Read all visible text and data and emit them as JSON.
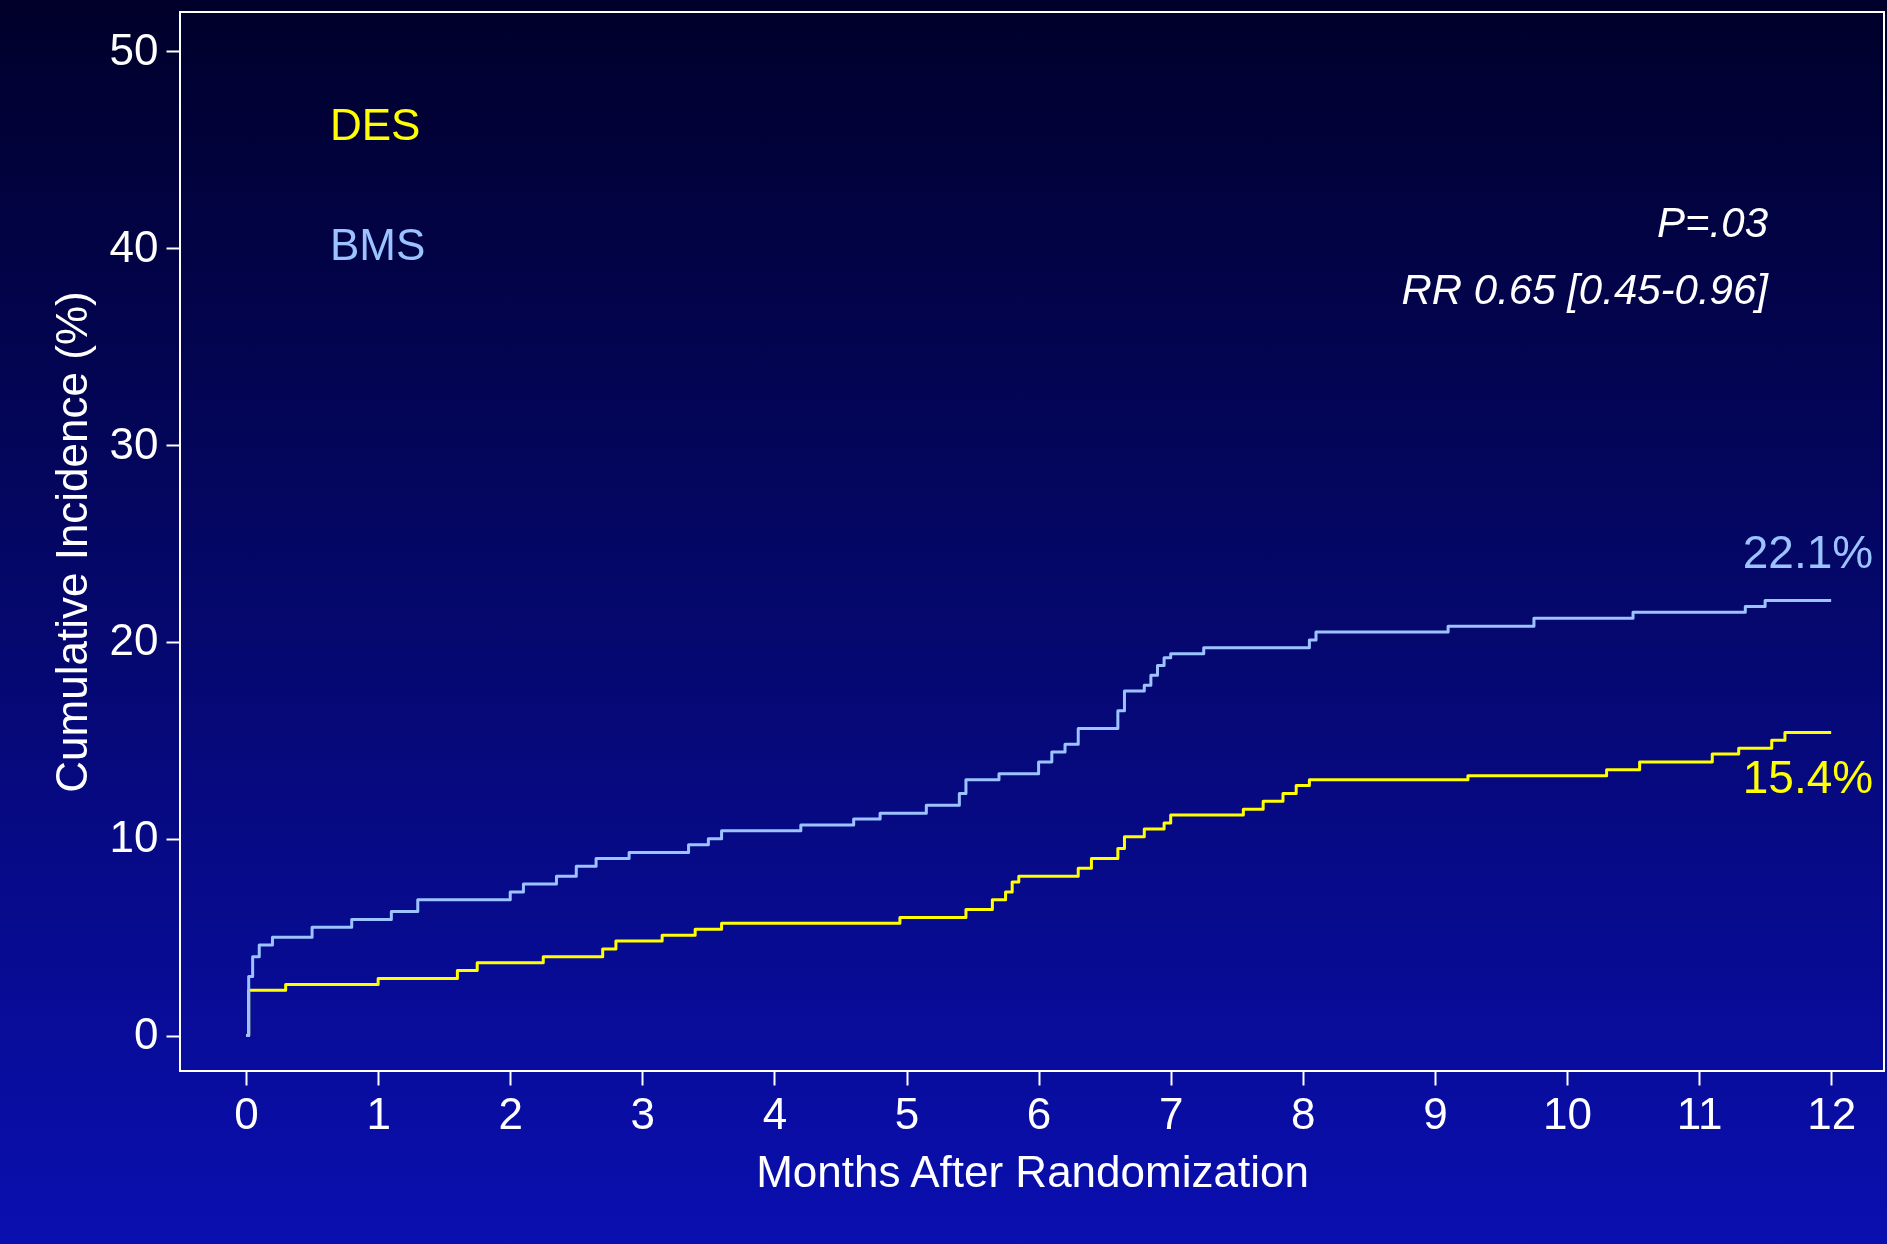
{
  "chart_data": {
    "type": "step",
    "xlabel": "Months After Randomization",
    "ylabel": "Cumulative Incidence (%)",
    "xlim": [
      -0.5,
      12.4
    ],
    "ylim": [
      -1.8,
      52
    ],
    "xticks": [
      0,
      1,
      2,
      3,
      4,
      5,
      6,
      7,
      8,
      9,
      10,
      11,
      12
    ],
    "yticks": [
      0,
      10,
      20,
      30,
      40,
      50
    ],
    "grid": false,
    "legend": "top left",
    "annotations": [
      "P=.03",
      "RR 0.65 [0.45-0.96]"
    ],
    "series": [
      {
        "name": "DES",
        "color": "#ffff00",
        "x": [
          0,
          0.02,
          0.3,
          1.0,
          1.6,
          1.75,
          2.25,
          2.7,
          2.8,
          3.15,
          3.4,
          3.6,
          4.95,
          5.45,
          5.65,
          5.75,
          5.8,
          5.85,
          6.3,
          6.4,
          6.6,
          6.65,
          6.8,
          6.95,
          7.0,
          7.55,
          7.7,
          7.85,
          7.95,
          8.05,
          9.25,
          10.3,
          10.55,
          11.1,
          11.3,
          11.55,
          11.65,
          12
        ],
        "values": [
          0,
          2.3,
          2.6,
          2.9,
          3.3,
          3.7,
          4.0,
          4.4,
          4.8,
          5.1,
          5.4,
          5.7,
          6.0,
          6.4,
          6.9,
          7.3,
          7.8,
          8.1,
          8.5,
          9.0,
          9.5,
          10.1,
          10.5,
          10.8,
          11.2,
          11.5,
          11.9,
          12.3,
          12.7,
          13.0,
          13.2,
          13.5,
          13.9,
          14.3,
          14.6,
          15.0,
          15.4,
          15.4
        ],
        "value_labels": [
          null,
          null,
          null,
          null,
          null,
          null,
          null,
          null,
          null,
          null,
          null,
          null,
          null,
          null,
          null,
          null,
          null,
          null,
          null,
          null,
          null,
          null,
          null,
          null,
          null,
          null,
          null,
          null,
          null,
          null,
          null,
          null,
          null,
          null,
          null,
          null,
          null,
          "15.4%"
        ]
      },
      {
        "name": "BMS",
        "color": "#9cc3ff",
        "x": [
          0,
          0.02,
          0.05,
          0.1,
          0.2,
          0.5,
          0.8,
          1.1,
          1.3,
          2.0,
          2.1,
          2.35,
          2.5,
          2.65,
          2.9,
          3.35,
          3.5,
          3.6,
          4.2,
          4.6,
          4.8,
          5.15,
          5.4,
          5.45,
          5.7,
          6.0,
          6.1,
          6.2,
          6.3,
          6.6,
          6.65,
          6.8,
          6.85,
          6.9,
          6.95,
          7.0,
          7.25,
          8.05,
          8.1,
          9.1,
          9.75,
          10.5,
          11.35,
          11.5,
          12
        ],
        "values": [
          0,
          3.0,
          4.0,
          4.6,
          5.0,
          5.5,
          5.9,
          6.3,
          6.9,
          7.3,
          7.7,
          8.1,
          8.6,
          9.0,
          9.3,
          9.7,
          10.0,
          10.4,
          10.7,
          11.0,
          11.3,
          11.7,
          12.3,
          13.0,
          13.3,
          13.9,
          14.4,
          14.8,
          15.6,
          16.5,
          17.5,
          17.8,
          18.3,
          18.8,
          19.2,
          19.4,
          19.7,
          20.1,
          20.5,
          20.8,
          21.2,
          21.5,
          21.8,
          22.1,
          22.1
        ],
        "value_labels": [
          null,
          null,
          null,
          null,
          null,
          null,
          null,
          null,
          null,
          null,
          null,
          null,
          null,
          null,
          null,
          null,
          null,
          null,
          null,
          null,
          null,
          null,
          null,
          null,
          null,
          null,
          null,
          null,
          null,
          null,
          null,
          null,
          null,
          null,
          null,
          null,
          null,
          null,
          null,
          null,
          null,
          null,
          null,
          null,
          "22.1%"
        ]
      }
    ]
  }
}
